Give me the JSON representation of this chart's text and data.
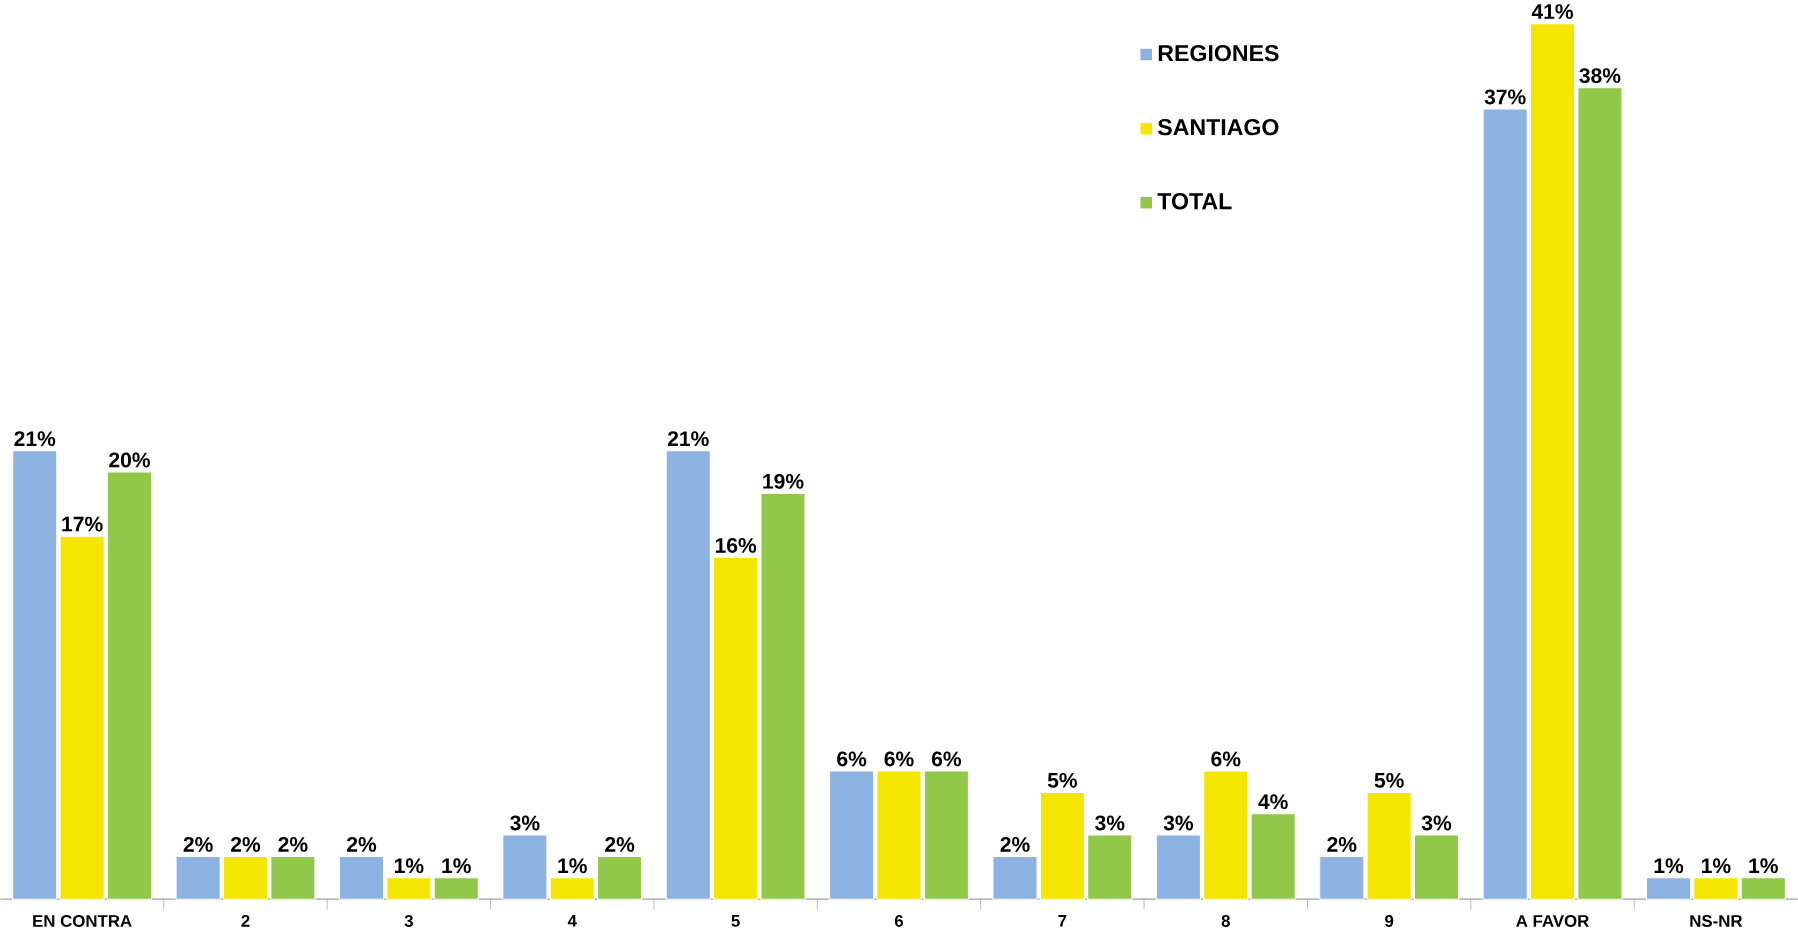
{
  "chart_data": {
    "type": "bar",
    "categories": [
      "EN CONTRA",
      "2",
      "3",
      "4",
      "5",
      "6",
      "7",
      "8",
      "9",
      "A FAVOR",
      "NS-NR"
    ],
    "series": [
      {
        "name": "REGIONES",
        "color": "#8db3e2",
        "values": [
          21,
          2,
          2,
          3,
          21,
          6,
          2,
          3,
          2,
          37,
          1
        ],
        "value_labels": [
          "21%",
          "2%",
          "2%",
          "3%",
          "21%",
          "6%",
          "2%",
          "3%",
          "2%",
          "37%",
          "1%"
        ]
      },
      {
        "name": "SANTIAGO",
        "color": "#f5e600",
        "values": [
          17,
          2,
          1,
          1,
          16,
          6,
          5,
          6,
          5,
          41,
          1
        ],
        "value_labels": [
          "17%",
          "2%",
          "1%",
          "1%",
          "16%",
          "6%",
          "5%",
          "6%",
          "5%",
          "41%",
          "1%"
        ]
      },
      {
        "name": "TOTAL",
        "color": "#92c84a",
        "values": [
          20,
          2,
          1,
          2,
          19,
          6,
          3,
          4,
          3,
          38,
          1
        ],
        "value_labels": [
          "20%",
          "2%",
          "1%",
          "2%",
          "19%",
          "6%",
          "3%",
          "4%",
          "3%",
          "38%",
          "1%"
        ]
      }
    ],
    "legend": "top right"
  }
}
